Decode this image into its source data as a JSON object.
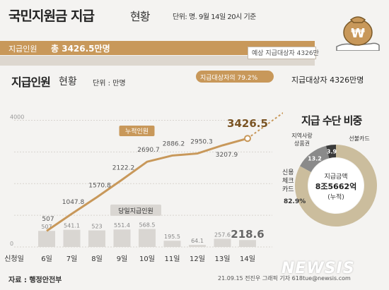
{
  "title": {
    "main": "국민지원금 지급",
    "suffix": "현황",
    "unit_note": "단위: 명. 9월 14일 20시 기준"
  },
  "summary": {
    "total_label": "지급인원",
    "total_value": "총 3426.5만명",
    "target_label": "예상 지급대상자 4326만",
    "ratio_label": "지급대상자의 79.2%",
    "target_people_label": "지급대상자 4326만명"
  },
  "section": {
    "title": "지급인원",
    "suffix": "현황",
    "unit": "단위 : 만명"
  },
  "chart_data": [
    {
      "type": "line",
      "title": "지급인원 현황",
      "unit": "단위 : 만명",
      "categories": [
        "6일",
        "7일",
        "8일",
        "9일",
        "10일",
        "11일",
        "12일",
        "13일",
        "14일"
      ],
      "category_label_prefix": "신청일",
      "ylim": [
        0,
        4500
      ],
      "y_ticks": [
        0,
        1000,
        2000,
        3000,
        4000
      ],
      "y_tick_labels": [
        "0",
        "",
        "",
        "",
        "4000"
      ],
      "series": [
        {
          "name": "누적인원",
          "kind": "line",
          "color": "#c8985a",
          "values": [
            507,
            1047.8,
            1570.8,
            2122.2,
            2690.7,
            2886.2,
            2950.3,
            3207.9,
            3426.5
          ],
          "labels": [
            "507",
            "1047.8",
            "1570.8",
            "2122.2",
            "2690.7",
            "2886.2",
            "2950.3",
            "3207.9",
            "3426.5"
          ]
        },
        {
          "name": "당일지급인원",
          "kind": "bar",
          "color": "#d9d6d2",
          "values": [
            507,
            541.1,
            523,
            551.4,
            568.5,
            195.5,
            64.1,
            257.6,
            218.6
          ],
          "labels": [
            "507",
            "541.1",
            "523",
            "551.4",
            "568.5",
            "195.5",
            "64.1",
            "257.6",
            "218.6"
          ]
        }
      ],
      "projection": {
        "value": 4326,
        "style": "dashed"
      }
    },
    {
      "type": "pie",
      "title": "지급 수단 비중",
      "center_label_1": "지급금액",
      "center_label_2": "8조5662억",
      "center_label_3": "(누적)",
      "slices": [
        {
          "label": "신용 체크 카드",
          "label_lines": [
            "신용",
            "체크",
            "카드"
          ],
          "value": 82.9,
          "value_label": "82.9%",
          "color": "#cbbd9d"
        },
        {
          "label": "지역사랑 상품권",
          "label_lines": [
            "지역사랑",
            "상품권"
          ],
          "value": 13.2,
          "value_label": "13.2",
          "color": "#8a8a8a"
        },
        {
          "label": "선불카드",
          "label_lines": [
            "선불카드"
          ],
          "value": 3.9,
          "value_label": "3.9",
          "color": "#3a3a3a"
        }
      ]
    }
  ],
  "footer": {
    "source": "자료 : 행정안전부",
    "credit": "21.09.15 전진우 그래픽 기자 618tue@newsis.com",
    "logo": "NEWSIS"
  }
}
